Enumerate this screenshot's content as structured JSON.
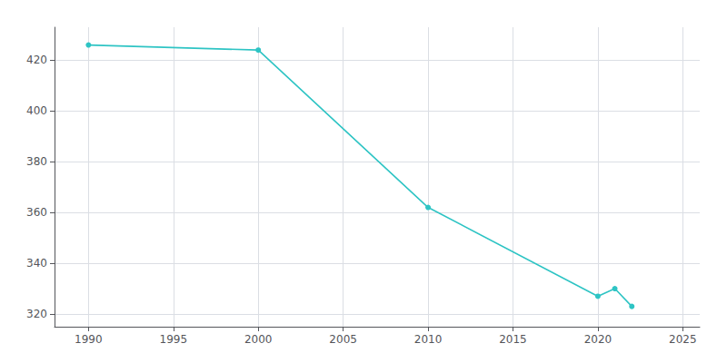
{
  "chart_data": {
    "type": "line",
    "x": [
      1990,
      2000,
      2010,
      2020,
      2021,
      2022
    ],
    "values": [
      426,
      424,
      362,
      327,
      330,
      323
    ],
    "color": "#2EC4C4",
    "marker": "circle",
    "xlim": [
      1988,
      2026
    ],
    "ylim": [
      315,
      433
    ],
    "xticks": [
      1990,
      1995,
      2000,
      2005,
      2010,
      2015,
      2020,
      2025
    ],
    "yticks": [
      320,
      340,
      360,
      380,
      400,
      420
    ],
    "grid": true
  }
}
